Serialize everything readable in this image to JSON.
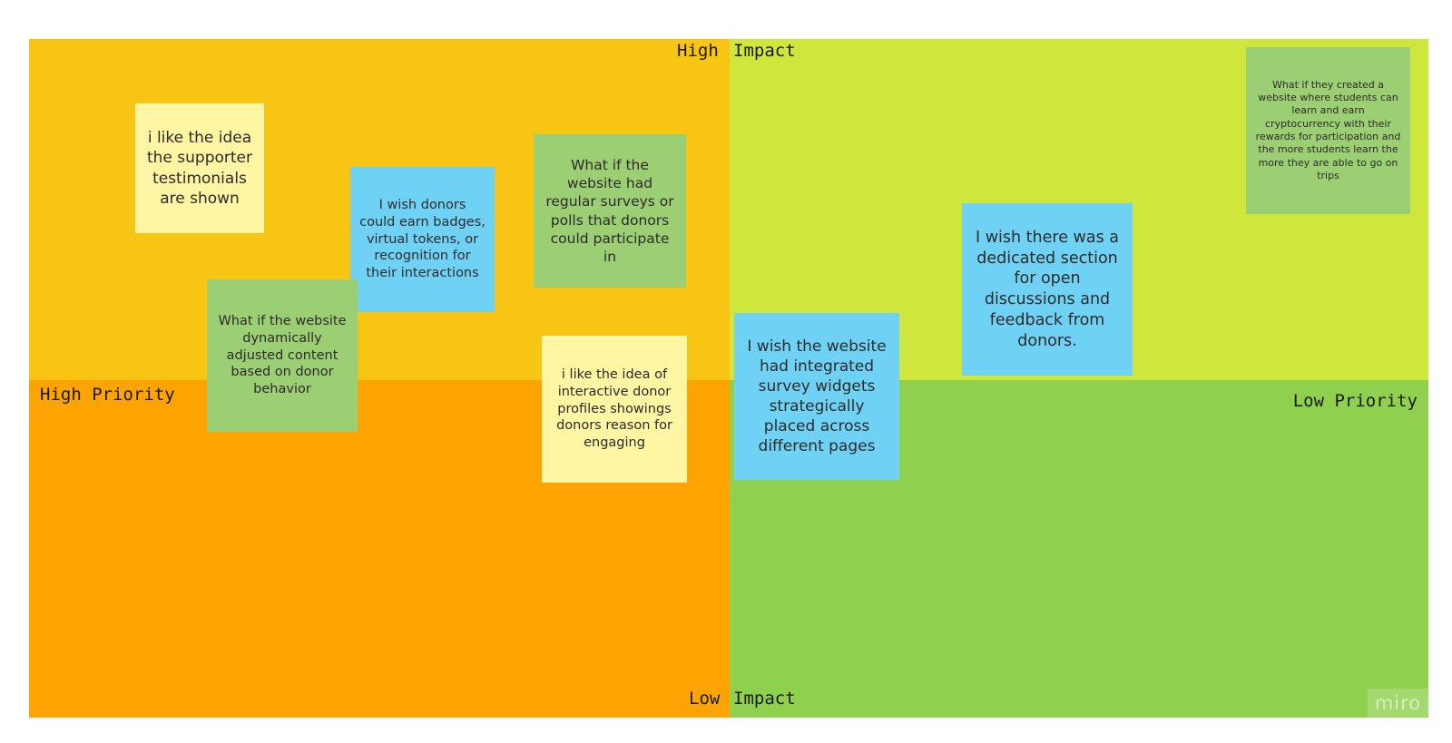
{
  "colors": {
    "high_impact_high_priority": "#f8c515",
    "high_impact_low_priority": "#cfe63d",
    "low_impact_high_priority": "#fda402",
    "low_impact_low_priority": "#8fd14f",
    "sticky_yellow": "#fff5a3",
    "sticky_blue": "#6fd2f4",
    "sticky_green": "#9ccf73"
  },
  "axes": {
    "high_impact_part1": "High",
    "high_impact_part2": "Impact",
    "low_impact_part1": "Low",
    "low_impact_part2": "Impact",
    "high_priority": "High Priority",
    "low_priority": "Low Priority"
  },
  "stickies": [
    {
      "color": "yellow",
      "text": "i like the idea the supporter testimonials are shown"
    },
    {
      "color": "blue",
      "text": "I wish donors could earn badges, virtual tokens, or recognition for their interactions"
    },
    {
      "color": "green",
      "text": "What if the website had regular surveys or polls that donors could participate in"
    },
    {
      "color": "green",
      "text": "What if the website dynamically adjusted content based on donor behavior"
    },
    {
      "color": "yellow",
      "text": "i like the idea of interactive donor profiles showings donors reason for engaging"
    },
    {
      "color": "blue",
      "text": "I wish the website had integrated survey widgets strategically placed across different pages"
    },
    {
      "color": "blue",
      "text": "I wish there was a dedicated section for open discussions and feedback from donors."
    },
    {
      "color": "green",
      "text": "What if they created a website where students can learn and earn cryptocurrency with their rewards for participation and the more students learn the more they are able to go on trips"
    }
  ],
  "logo": "miro"
}
